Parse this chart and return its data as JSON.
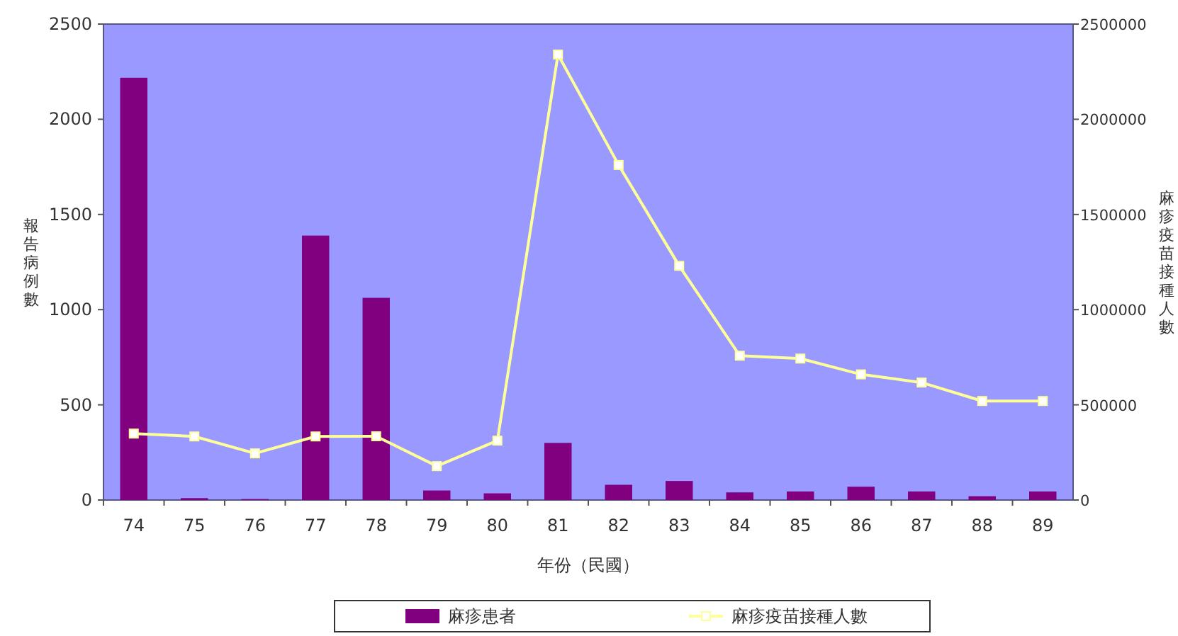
{
  "chart_data": {
    "type": "bar",
    "categories": [
      "74",
      "75",
      "76",
      "77",
      "78",
      "79",
      "80",
      "81",
      "82",
      "83",
      "84",
      "85",
      "86",
      "87",
      "88",
      "89"
    ],
    "series": [
      {
        "name": "麻疹患者",
        "color": "#800080",
        "values": [
          2218,
          10,
          5,
          1389,
          1062,
          50,
          35,
          300,
          80,
          100,
          40,
          45,
          70,
          45,
          20,
          45
        ]
      },
      {
        "name": "麻疹疫苗接種人數",
        "type": "line",
        "axis": "y2",
        "color": "#ffff99",
        "marker": "square",
        "values": [
          349000,
          334000,
          245000,
          334000,
          335000,
          178000,
          312000,
          2340000,
          1760000,
          1230000,
          758000,
          743000,
          660000,
          617000,
          520000,
          520000
        ]
      }
    ],
    "ylim": [
      0,
      2500
    ],
    "yticks": [
      0,
      500,
      1000,
      1500,
      2000,
      2500
    ],
    "y2lim": [
      0,
      2500000
    ],
    "y2ticks": [
      0,
      500000,
      1000000,
      1500000,
      2000000,
      2500000
    ],
    "ylabel": "報告病例數",
    "y2label": "麻疹疫苗接種人數",
    "xlabel": "年份（民國）",
    "legend": "bottom"
  }
}
